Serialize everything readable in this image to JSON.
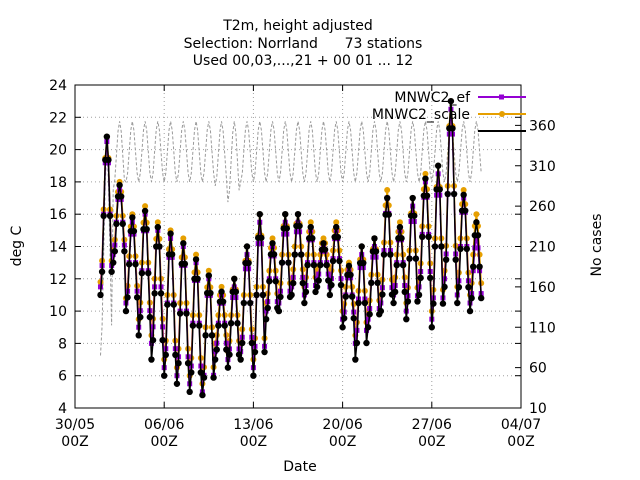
{
  "chart_data": {
    "type": "line",
    "title_lines": [
      "T2m, height adjusted",
      "Selection: Norrland      73 stations",
      "Used 00,03,...,21 + 00 01 ... 12"
    ],
    "xlabel": "Date",
    "ylabel": "deg C",
    "y2label": "No cases",
    "xlim": [
      "2023-05-30T00:00Z",
      "2023-07-04T00:00Z"
    ],
    "ylim": [
      4,
      24
    ],
    "y2lim": [
      10,
      410
    ],
    "x_ticks": [
      {
        "value": "2023-05-30T00:00Z",
        "label_lines": [
          "30/05",
          "00Z"
        ]
      },
      {
        "value": "2023-06-06T00:00Z",
        "label_lines": [
          "06/06",
          "00Z"
        ]
      },
      {
        "value": "2023-06-13T00:00Z",
        "label_lines": [
          "13/06",
          "00Z"
        ]
      },
      {
        "value": "2023-06-20T00:00Z",
        "label_lines": [
          "20/06",
          "00Z"
        ]
      },
      {
        "value": "2023-06-27T00:00Z",
        "label_lines": [
          "27/06",
          "00Z"
        ]
      },
      {
        "value": "2023-07-04T00:00Z",
        "label_lines": [
          "04/07",
          "00Z"
        ]
      }
    ],
    "y_ticks": [
      "4",
      "6",
      "8",
      "10",
      "12",
      "14",
      "16",
      "18",
      "20",
      "22",
      "24"
    ],
    "y2_ticks": [
      "10",
      "60",
      "110",
      "160",
      "210",
      "260",
      "310",
      "360"
    ],
    "grid": true,
    "legend_position": "top-right",
    "series": [
      {
        "name": "MNWC2_ef",
        "color": "#9400d3",
        "marker": "square",
        "axis": "left",
        "x": [
          "2023-06-01T00:00Z",
          "2023-06-02T00:00Z",
          "2023-06-03T00:00Z",
          "2023-06-04T00:00Z",
          "2023-06-05T00:00Z",
          "2023-06-06T00:00Z",
          "2023-06-07T00:00Z",
          "2023-06-08T00:00Z",
          "2023-06-09T00:00Z",
          "2023-06-10T00:00Z",
          "2023-06-11T00:00Z",
          "2023-06-12T00:00Z",
          "2023-06-13T00:00Z",
          "2023-06-14T00:00Z",
          "2023-06-15T00:00Z",
          "2023-06-16T00:00Z",
          "2023-06-17T00:00Z",
          "2023-06-18T00:00Z",
          "2023-06-19T00:00Z",
          "2023-06-20T00:00Z",
          "2023-06-21T00:00Z",
          "2023-06-22T00:00Z",
          "2023-06-23T00:00Z",
          "2023-06-24T00:00Z",
          "2023-06-25T00:00Z",
          "2023-06-26T00:00Z",
          "2023-06-27T00:00Z",
          "2023-06-28T00:00Z",
          "2023-06-29T00:00Z",
          "2023-06-30T00:00Z"
        ],
        "min": [
          11.5,
          13.5,
          10.5,
          9.0,
          8.0,
          6.5,
          6.0,
          5.5,
          5.0,
          7.5,
          7.0,
          7.5,
          6.5,
          10.0,
          10.5,
          11.5,
          11.0,
          12.0,
          11.5,
          9.5,
          8.0,
          9.5,
          10.5,
          11.0,
          10.0,
          11.5,
          9.5,
          12.0,
          11.0,
          10.5
        ],
        "max": [
          20.5,
          17.5,
          15.5,
          16.0,
          15.0,
          14.5,
          14.0,
          13.0,
          12.0,
          11.0,
          11.5,
          13.5,
          15.5,
          14.0,
          15.5,
          15.5,
          15.0,
          14.0,
          15.0,
          12.5,
          13.5,
          14.0,
          17.0,
          15.0,
          16.5,
          18.0,
          18.5,
          22.5,
          17.0,
          14.5
        ]
      },
      {
        "name": "MNWC2_scale",
        "color": "#e69f00",
        "marker": "circle",
        "axis": "left",
        "x": [
          "2023-06-01T00:00Z",
          "2023-06-02T00:00Z",
          "2023-06-03T00:00Z",
          "2023-06-04T00:00Z",
          "2023-06-05T00:00Z",
          "2023-06-06T00:00Z",
          "2023-06-07T00:00Z",
          "2023-06-08T00:00Z",
          "2023-06-09T00:00Z",
          "2023-06-10T00:00Z",
          "2023-06-11T00:00Z",
          "2023-06-12T00:00Z",
          "2023-06-13T00:00Z",
          "2023-06-14T00:00Z",
          "2023-06-15T00:00Z",
          "2023-06-16T00:00Z",
          "2023-06-17T00:00Z",
          "2023-06-18T00:00Z",
          "2023-06-19T00:00Z",
          "2023-06-20T00:00Z",
          "2023-06-21T00:00Z",
          "2023-06-22T00:00Z",
          "2023-06-23T00:00Z",
          "2023-06-24T00:00Z",
          "2023-06-25T00:00Z",
          "2023-06-26T00:00Z",
          "2023-06-27T00:00Z",
          "2023-06-28T00:00Z",
          "2023-06-29T00:00Z",
          "2023-06-30T00:00Z"
        ],
        "min": [
          11.8,
          13.8,
          10.8,
          9.5,
          8.5,
          7.0,
          6.5,
          6.0,
          5.5,
          8.0,
          7.5,
          8.0,
          7.0,
          10.5,
          11.0,
          12.0,
          11.5,
          12.5,
          12.0,
          10.0,
          8.5,
          10.0,
          11.0,
          11.5,
          10.5,
          12.0,
          10.0,
          12.5,
          11.5,
          11.0
        ],
        "max": [
          20.8,
          18.0,
          16.0,
          16.5,
          15.5,
          15.0,
          14.5,
          13.5,
          12.5,
          11.5,
          12.0,
          14.0,
          16.0,
          14.5,
          16.0,
          16.0,
          15.5,
          14.5,
          15.5,
          13.0,
          14.0,
          14.5,
          17.5,
          15.5,
          17.0,
          18.5,
          19.0,
          23.0,
          17.5,
          16.0
        ]
      },
      {
        "name": "",
        "color": "#000000",
        "marker": "plus",
        "axis": "left",
        "x": [
          "2023-06-01T00:00Z",
          "2023-06-02T00:00Z",
          "2023-06-03T00:00Z",
          "2023-06-04T00:00Z",
          "2023-06-05T00:00Z",
          "2023-06-06T00:00Z",
          "2023-06-07T00:00Z",
          "2023-06-08T00:00Z",
          "2023-06-09T00:00Z",
          "2023-06-10T00:00Z",
          "2023-06-11T00:00Z",
          "2023-06-12T00:00Z",
          "2023-06-13T00:00Z",
          "2023-06-14T00:00Z",
          "2023-06-15T00:00Z",
          "2023-06-16T00:00Z",
          "2023-06-17T00:00Z",
          "2023-06-18T00:00Z",
          "2023-06-19T00:00Z",
          "2023-06-20T00:00Z",
          "2023-06-21T00:00Z",
          "2023-06-22T00:00Z",
          "2023-06-23T00:00Z",
          "2023-06-24T00:00Z",
          "2023-06-25T00:00Z",
          "2023-06-26T00:00Z",
          "2023-06-27T00:00Z",
          "2023-06-28T00:00Z",
          "2023-06-29T00:00Z",
          "2023-06-30T00:00Z"
        ],
        "min": [
          11.0,
          13.0,
          10.0,
          8.5,
          7.0,
          6.0,
          5.5,
          5.0,
          4.8,
          7.0,
          6.5,
          7.0,
          6.0,
          9.5,
          10.0,
          11.0,
          10.5,
          11.5,
          11.0,
          9.0,
          7.0,
          9.0,
          10.0,
          10.5,
          9.5,
          11.0,
          9.0,
          11.5,
          10.5,
          10.0
        ],
        "max": [
          20.8,
          17.8,
          15.8,
          16.2,
          15.2,
          14.8,
          14.2,
          13.2,
          12.2,
          11.2,
          12.0,
          14.0,
          16.0,
          14.2,
          16.0,
          16.0,
          15.2,
          14.2,
          15.2,
          12.8,
          14.0,
          14.5,
          17.0,
          15.2,
          17.0,
          18.2,
          19.0,
          23.0,
          17.2,
          15.5
        ]
      },
      {
        "name": "No cases",
        "color": "#999999",
        "style": "dashed",
        "axis": "right",
        "x": [
          "2023-06-01T00:00Z",
          "2023-06-02T00:00Z",
          "2023-06-03T00:00Z",
          "2023-06-04T00:00Z",
          "2023-06-05T00:00Z",
          "2023-06-06T00:00Z",
          "2023-06-07T00:00Z",
          "2023-06-08T00:00Z",
          "2023-06-09T00:00Z",
          "2023-06-10T00:00Z",
          "2023-06-11T00:00Z",
          "2023-06-12T00:00Z",
          "2023-06-13T00:00Z",
          "2023-06-14T00:00Z",
          "2023-06-15T00:00Z",
          "2023-06-16T00:00Z",
          "2023-06-17T00:00Z",
          "2023-06-18T00:00Z",
          "2023-06-19T00:00Z",
          "2023-06-20T00:00Z",
          "2023-06-21T00:00Z",
          "2023-06-22T00:00Z",
          "2023-06-23T00:00Z",
          "2023-06-24T00:00Z",
          "2023-06-25T00:00Z",
          "2023-06-26T00:00Z",
          "2023-06-27T00:00Z",
          "2023-06-28T00:00Z",
          "2023-06-29T00:00Z",
          "2023-06-30T00:00Z"
        ],
        "min": [
          75,
          280,
          290,
          290,
          290,
          290,
          290,
          290,
          290,
          285,
          265,
          290,
          290,
          290,
          290,
          290,
          290,
          290,
          290,
          290,
          290,
          290,
          290,
          290,
          290,
          290,
          290,
          290,
          290,
          290
        ],
        "max": [
          330,
          365,
          365,
          365,
          365,
          365,
          365,
          365,
          365,
          365,
          365,
          365,
          365,
          365,
          365,
          365,
          365,
          365,
          365,
          365,
          365,
          365,
          365,
          365,
          365,
          365,
          365,
          365,
          365,
          365
        ]
      }
    ]
  }
}
